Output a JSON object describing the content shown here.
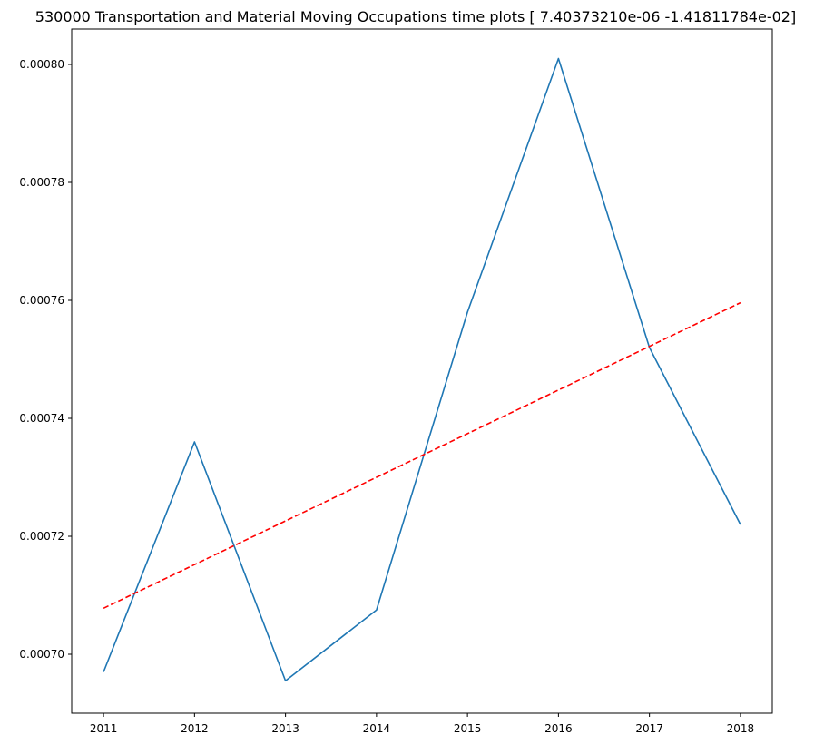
{
  "chart_data": {
    "type": "line",
    "title": "530000 Transportation and Material Moving Occupations time plots [ 7.40373210e-06 -1.41811784e-02]",
    "xlabel": "",
    "ylabel": "",
    "x": [
      2011,
      2012,
      2013,
      2014,
      2015,
      2016,
      2017,
      2018
    ],
    "xlim": [
      2010.65,
      2018.35
    ],
    "ylim": [
      0.00069,
      0.000806
    ],
    "xticks": [
      "2011",
      "2012",
      "2013",
      "2014",
      "2015",
      "2016",
      "2017",
      "2018"
    ],
    "yticks": [
      0.0007,
      0.00072,
      0.00074,
      0.00076,
      0.00078,
      0.0008
    ],
    "ytick_labels": [
      "0.00070",
      "0.00072",
      "0.00074",
      "0.00076",
      "0.00078",
      "0.00080"
    ],
    "grid": false,
    "series": [
      {
        "style": "solid",
        "color": "#1f77b4",
        "values": [
          0.000697,
          0.000736,
          0.0006955,
          0.0007075,
          0.000758,
          0.000801,
          0.000752,
          0.000722
        ]
      },
      {
        "style": "dashed",
        "color": "#ff0000",
        "values": [
          0.0007078,
          0.0007152,
          0.0007226,
          0.00073,
          0.0007374,
          0.0007448,
          0.0007522,
          0.0007596
        ]
      }
    ]
  }
}
